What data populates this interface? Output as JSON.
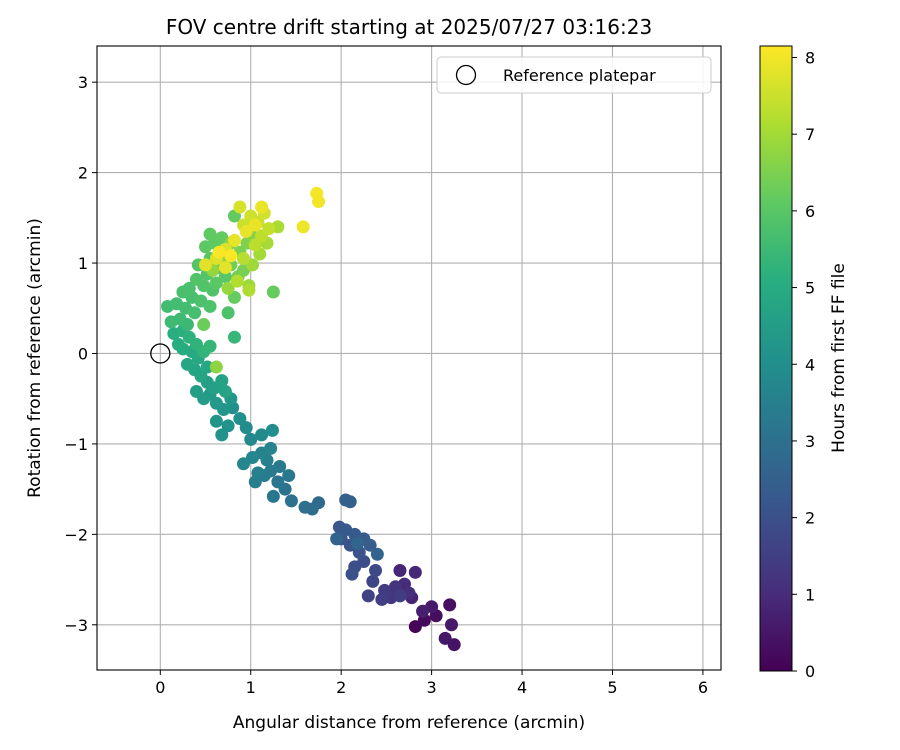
{
  "chart_data": {
    "type": "scatter",
    "title": "FOV centre drift starting at 2025/07/27 03:16:23",
    "xlabel": "Angular distance from reference (arcmin)",
    "ylabel": "Rotation from reference (arcmin)",
    "xlim": [
      -0.7,
      6.2
    ],
    "ylim": [
      -3.5,
      3.4
    ],
    "xticks": [
      0,
      1,
      2,
      3,
      4,
      5,
      6
    ],
    "yticks": [
      -3,
      -2,
      -1,
      0,
      1,
      2,
      3
    ],
    "grid": true,
    "legend": {
      "position": "top-right",
      "entries": [
        "Reference platepar"
      ]
    },
    "reference_point": {
      "label": "Reference platepar",
      "x": 0,
      "y": 0
    },
    "colorbar": {
      "label": "Hours from first FF file",
      "colormap": "viridis",
      "range": [
        0,
        8.15
      ],
      "ticks": [
        0,
        1,
        2,
        3,
        4,
        5,
        6,
        7,
        8
      ]
    },
    "series": [
      {
        "points": [
          {
            "x": 2.82,
            "y": -3.02,
            "h": 0.05
          },
          {
            "x": 2.92,
            "y": -2.95,
            "h": 0.2
          },
          {
            "x": 3.05,
            "y": -2.9,
            "h": 0.3
          },
          {
            "x": 3.2,
            "y": -2.78,
            "h": 0.35
          },
          {
            "x": 3.25,
            "y": -3.22,
            "h": 0.45
          },
          {
            "x": 3.15,
            "y": -3.15,
            "h": 0.5
          },
          {
            "x": 3.22,
            "y": -3.0,
            "h": 0.55
          },
          {
            "x": 3.0,
            "y": -2.8,
            "h": 0.6
          },
          {
            "x": 2.9,
            "y": -2.85,
            "h": 0.7
          },
          {
            "x": 2.78,
            "y": -2.7,
            "h": 0.8
          },
          {
            "x": 2.65,
            "y": -2.4,
            "h": 0.85
          },
          {
            "x": 2.82,
            "y": -2.42,
            "h": 0.9
          },
          {
            "x": 2.7,
            "y": -2.55,
            "h": 1.0
          },
          {
            "x": 2.75,
            "y": -2.65,
            "h": 1.1
          },
          {
            "x": 2.6,
            "y": -2.58,
            "h": 1.2
          },
          {
            "x": 2.55,
            "y": -2.7,
            "h": 1.3
          },
          {
            "x": 2.48,
            "y": -2.62,
            "h": 1.4
          },
          {
            "x": 2.65,
            "y": -2.68,
            "h": 1.45
          },
          {
            "x": 2.45,
            "y": -2.72,
            "h": 1.5
          },
          {
            "x": 2.3,
            "y": -2.68,
            "h": 1.6
          },
          {
            "x": 2.35,
            "y": -2.52,
            "h": 1.7
          },
          {
            "x": 2.38,
            "y": -2.4,
            "h": 1.8
          },
          {
            "x": 2.25,
            "y": -2.3,
            "h": 1.9
          },
          {
            "x": 2.15,
            "y": -2.36,
            "h": 1.95
          },
          {
            "x": 2.12,
            "y": -2.44,
            "h": 2.0
          },
          {
            "x": 2.2,
            "y": -2.2,
            "h": 2.05
          },
          {
            "x": 2.1,
            "y": -2.12,
            "h": 2.1
          },
          {
            "x": 2.0,
            "y": -2.05,
            "h": 2.15
          },
          {
            "x": 1.98,
            "y": -1.92,
            "h": 2.2
          },
          {
            "x": 2.05,
            "y": -1.95,
            "h": 2.25
          },
          {
            "x": 2.15,
            "y": -2.0,
            "h": 2.3
          },
          {
            "x": 2.25,
            "y": -2.05,
            "h": 2.35
          },
          {
            "x": 2.32,
            "y": -2.12,
            "h": 2.4
          },
          {
            "x": 2.05,
            "y": -1.62,
            "h": 2.45
          },
          {
            "x": 2.1,
            "y": -1.64,
            "h": 2.5
          },
          {
            "x": 1.95,
            "y": -2.05,
            "h": 2.55
          },
          {
            "x": 2.4,
            "y": -2.22,
            "h": 2.6
          },
          {
            "x": 2.18,
            "y": -2.1,
            "h": 2.65
          },
          {
            "x": 1.75,
            "y": -1.65,
            "h": 2.75
          },
          {
            "x": 1.68,
            "y": -1.72,
            "h": 2.85
          },
          {
            "x": 1.6,
            "y": -1.7,
            "h": 2.95
          },
          {
            "x": 1.45,
            "y": -1.63,
            "h": 3.05
          },
          {
            "x": 1.38,
            "y": -1.5,
            "h": 3.1
          },
          {
            "x": 1.3,
            "y": -1.42,
            "h": 3.15
          },
          {
            "x": 1.25,
            "y": -1.58,
            "h": 3.2
          },
          {
            "x": 1.42,
            "y": -1.35,
            "h": 3.25
          },
          {
            "x": 1.32,
            "y": -1.25,
            "h": 3.3
          },
          {
            "x": 1.22,
            "y": -1.3,
            "h": 3.35
          },
          {
            "x": 1.15,
            "y": -1.35,
            "h": 3.4
          },
          {
            "x": 1.05,
            "y": -1.42,
            "h": 3.45
          },
          {
            "x": 1.08,
            "y": -1.32,
            "h": 3.5
          },
          {
            "x": 1.18,
            "y": -1.18,
            "h": 3.55
          },
          {
            "x": 1.12,
            "y": -1.1,
            "h": 3.6
          },
          {
            "x": 1.22,
            "y": -1.05,
            "h": 3.65
          },
          {
            "x": 1.02,
            "y": -1.15,
            "h": 3.7
          },
          {
            "x": 0.92,
            "y": -1.22,
            "h": 3.75
          },
          {
            "x": 1.0,
            "y": -0.95,
            "h": 3.8
          },
          {
            "x": 1.12,
            "y": -0.9,
            "h": 3.85
          },
          {
            "x": 1.24,
            "y": -0.85,
            "h": 3.9
          },
          {
            "x": 0.95,
            "y": -0.82,
            "h": 3.95
          },
          {
            "x": 0.88,
            "y": -0.72,
            "h": 4.0
          },
          {
            "x": 0.8,
            "y": -0.6,
            "h": 4.05
          },
          {
            "x": 0.75,
            "y": -0.8,
            "h": 4.1
          },
          {
            "x": 0.68,
            "y": -0.9,
            "h": 4.15
          },
          {
            "x": 0.62,
            "y": -0.75,
            "h": 4.2
          },
          {
            "x": 0.7,
            "y": -0.62,
            "h": 4.25
          },
          {
            "x": 0.78,
            "y": -0.5,
            "h": 4.3
          },
          {
            "x": 0.62,
            "y": -0.55,
            "h": 4.35
          },
          {
            "x": 0.55,
            "y": -0.45,
            "h": 4.4
          },
          {
            "x": 0.48,
            "y": -0.5,
            "h": 4.45
          },
          {
            "x": 0.4,
            "y": -0.42,
            "h": 4.5
          },
          {
            "x": 0.52,
            "y": -0.32,
            "h": 4.55
          },
          {
            "x": 0.6,
            "y": -0.38,
            "h": 4.6
          },
          {
            "x": 0.68,
            "y": -0.3,
            "h": 4.65
          },
          {
            "x": 0.72,
            "y": -0.42,
            "h": 4.7
          },
          {
            "x": 0.45,
            "y": -0.25,
            "h": 4.75
          },
          {
            "x": 0.38,
            "y": -0.18,
            "h": 4.78
          },
          {
            "x": 0.3,
            "y": -0.12,
            "h": 4.8
          },
          {
            "x": 0.52,
            "y": -0.15,
            "h": 4.85
          },
          {
            "x": 0.42,
            "y": -0.05,
            "h": 4.9
          },
          {
            "x": 0.35,
            "y": 0.02,
            "h": 4.95
          },
          {
            "x": 0.25,
            "y": 0.05,
            "h": 5.0
          },
          {
            "x": 0.2,
            "y": 0.1,
            "h": 5.05
          },
          {
            "x": 0.15,
            "y": 0.22,
            "h": 5.1
          },
          {
            "x": 0.25,
            "y": 0.25,
            "h": 5.15
          },
          {
            "x": 0.32,
            "y": 0.18,
            "h": 5.2
          },
          {
            "x": 0.4,
            "y": 0.1,
            "h": 5.25
          },
          {
            "x": 0.48,
            "y": 0.02,
            "h": 5.3
          },
          {
            "x": 0.55,
            "y": 0.08,
            "h": 5.35
          },
          {
            "x": 0.82,
            "y": 0.18,
            "h": 5.4
          },
          {
            "x": 0.3,
            "y": 0.32,
            "h": 5.45
          },
          {
            "x": 0.22,
            "y": 0.38,
            "h": 5.5
          },
          {
            "x": 0.12,
            "y": 0.35,
            "h": 5.55
          },
          {
            "x": 0.08,
            "y": 0.52,
            "h": 5.6
          },
          {
            "x": 0.18,
            "y": 0.55,
            "h": 5.62
          },
          {
            "x": 0.28,
            "y": 0.5,
            "h": 5.65
          },
          {
            "x": 0.38,
            "y": 0.45,
            "h": 5.68
          },
          {
            "x": 0.35,
            "y": 0.62,
            "h": 5.7
          },
          {
            "x": 0.25,
            "y": 0.68,
            "h": 5.72
          },
          {
            "x": 0.32,
            "y": 0.72,
            "h": 5.75
          },
          {
            "x": 0.45,
            "y": 0.58,
            "h": 5.78
          },
          {
            "x": 0.55,
            "y": 0.52,
            "h": 5.8
          },
          {
            "x": 0.75,
            "y": 0.45,
            "h": 5.82
          },
          {
            "x": 0.58,
            "y": 0.7,
            "h": 5.85
          },
          {
            "x": 0.48,
            "y": 0.75,
            "h": 5.88
          },
          {
            "x": 0.4,
            "y": 0.82,
            "h": 5.9
          },
          {
            "x": 0.52,
            "y": 0.88,
            "h": 5.92
          },
          {
            "x": 0.42,
            "y": 0.98,
            "h": 5.95
          },
          {
            "x": 0.55,
            "y": 1.05,
            "h": 5.98
          },
          {
            "x": 0.65,
            "y": 0.95,
            "h": 6.0
          },
          {
            "x": 0.72,
            "y": 0.85,
            "h": 6.02
          },
          {
            "x": 0.62,
            "y": 0.78,
            "h": 6.05
          },
          {
            "x": 0.5,
            "y": 1.18,
            "h": 6.08
          },
          {
            "x": 0.6,
            "y": 1.22,
            "h": 6.1
          },
          {
            "x": 0.55,
            "y": 1.32,
            "h": 6.12
          },
          {
            "x": 0.68,
            "y": 1.28,
            "h": 6.15
          },
          {
            "x": 0.82,
            "y": 1.52,
            "h": 6.18
          },
          {
            "x": 0.82,
            "y": 0.62,
            "h": 6.2
          },
          {
            "x": 1.25,
            "y": 0.68,
            "h": 6.22
          },
          {
            "x": 0.48,
            "y": 0.32,
            "h": 6.25
          },
          {
            "x": 0.7,
            "y": 1.1,
            "h": 6.3
          },
          {
            "x": 0.78,
            "y": 0.98,
            "h": 6.35
          },
          {
            "x": 0.86,
            "y": 0.85,
            "h": 6.4
          },
          {
            "x": 0.92,
            "y": 0.92,
            "h": 6.45
          },
          {
            "x": 0.88,
            "y": 1.12,
            "h": 6.5
          },
          {
            "x": 0.96,
            "y": 1.22,
            "h": 6.55
          },
          {
            "x": 1.0,
            "y": 1.32,
            "h": 6.6
          },
          {
            "x": 0.78,
            "y": 1.22,
            "h": 6.65
          },
          {
            "x": 0.68,
            "y": 1.05,
            "h": 6.7
          },
          {
            "x": 0.62,
            "y": -0.15,
            "h": 6.75
          },
          {
            "x": 0.58,
            "y": 0.92,
            "h": 6.8
          },
          {
            "x": 0.75,
            "y": 0.72,
            "h": 6.85
          },
          {
            "x": 0.98,
            "y": 0.75,
            "h": 6.9
          },
          {
            "x": 1.02,
            "y": 0.98,
            "h": 6.95
          },
          {
            "x": 1.1,
            "y": 1.1,
            "h": 7.0
          },
          {
            "x": 1.18,
            "y": 1.22,
            "h": 7.05
          },
          {
            "x": 1.3,
            "y": 1.4,
            "h": 7.1
          },
          {
            "x": 0.98,
            "y": 0.7,
            "h": 7.15
          },
          {
            "x": 0.85,
            "y": 0.8,
            "h": 7.2
          },
          {
            "x": 0.92,
            "y": 1.05,
            "h": 7.25
          },
          {
            "x": 1.05,
            "y": 1.2,
            "h": 7.3
          },
          {
            "x": 1.12,
            "y": 1.3,
            "h": 7.35
          },
          {
            "x": 1.2,
            "y": 1.38,
            "h": 7.4
          },
          {
            "x": 1.08,
            "y": 1.45,
            "h": 7.45
          },
          {
            "x": 0.92,
            "y": 1.42,
            "h": 7.5
          },
          {
            "x": 1.0,
            "y": 1.52,
            "h": 7.55
          },
          {
            "x": 1.15,
            "y": 1.55,
            "h": 7.6
          },
          {
            "x": 0.88,
            "y": 1.62,
            "h": 7.65
          },
          {
            "x": 0.72,
            "y": 1.15,
            "h": 7.7
          },
          {
            "x": 0.62,
            "y": 1.05,
            "h": 7.75
          },
          {
            "x": 0.5,
            "y": 0.98,
            "h": 7.8
          },
          {
            "x": 0.72,
            "y": 0.95,
            "h": 7.82
          },
          {
            "x": 0.82,
            "y": 1.25,
            "h": 7.85
          },
          {
            "x": 0.95,
            "y": 1.35,
            "h": 7.88
          },
          {
            "x": 1.05,
            "y": 1.42,
            "h": 7.9
          },
          {
            "x": 1.12,
            "y": 1.62,
            "h": 7.92
          },
          {
            "x": 1.58,
            "y": 1.4,
            "h": 7.95
          },
          {
            "x": 1.75,
            "y": 1.68,
            "h": 8.0
          },
          {
            "x": 1.73,
            "y": 1.77,
            "h": 8.05
          },
          {
            "x": 0.65,
            "y": 1.12,
            "h": 8.1
          },
          {
            "x": 0.78,
            "y": 1.08,
            "h": 8.12
          }
        ]
      }
    ]
  }
}
